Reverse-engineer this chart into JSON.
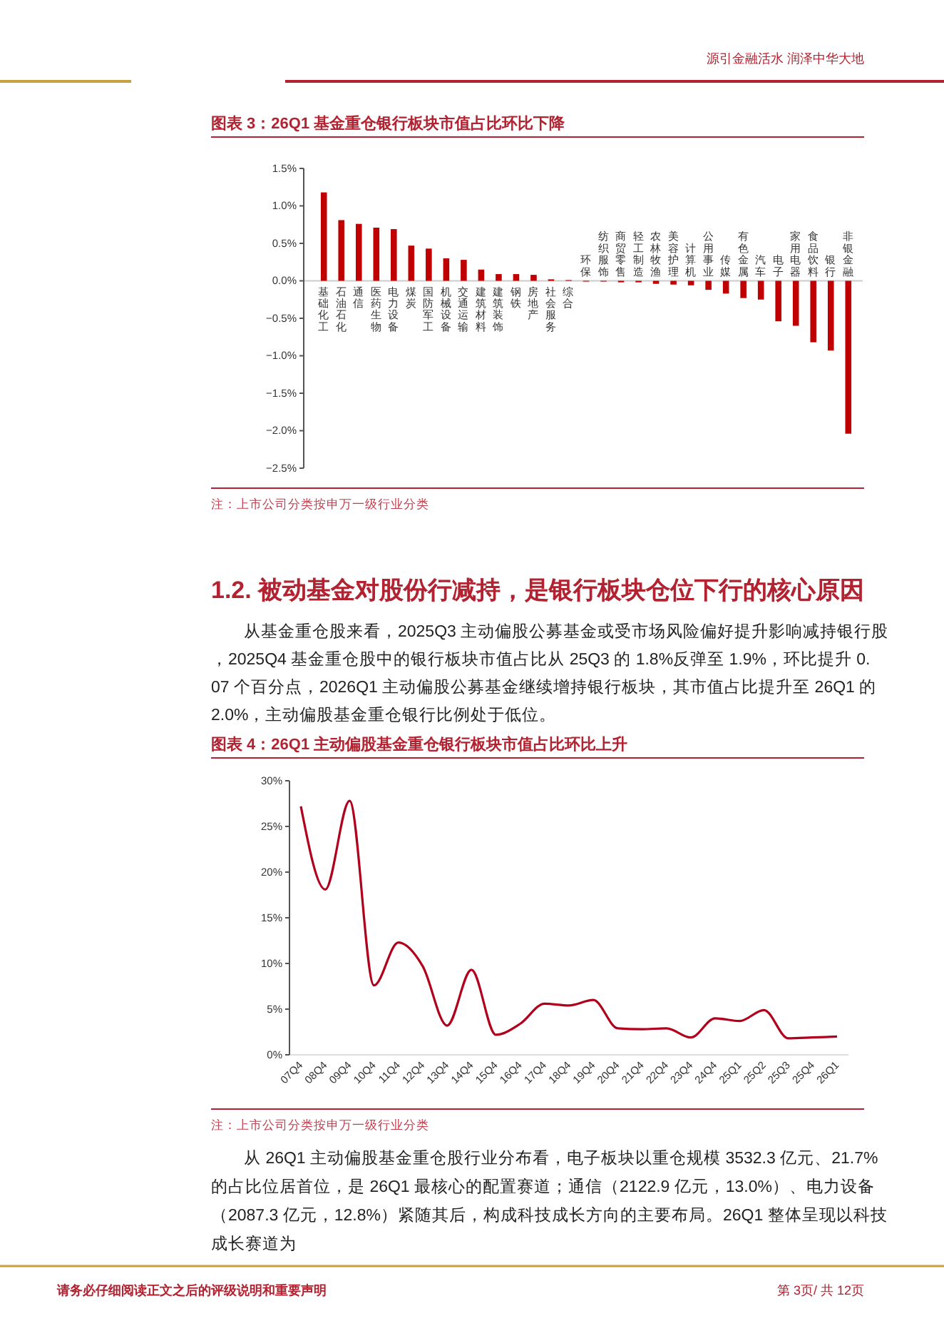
{
  "chart_data": [
    {
      "type": "bar",
      "title": "图表 3：26Q1 基金重仓银行板块市值占比环比下降",
      "color": "#c00000",
      "categories": [
        "基础化工",
        "石油石化",
        "通信",
        "医药生物",
        "电力设备",
        "煤炭",
        "国防军工",
        "机械设备",
        "交通运输",
        "建筑材料",
        "建筑装饰",
        "钢铁",
        "房地产",
        "社会服务",
        "综合",
        "环保",
        "纺织服饰",
        "商贸零售",
        "轻工制造",
        "农林牧渔",
        "美容护理",
        "计算机",
        "公用事业",
        "传媒",
        "有色金属",
        "汽车",
        "电子",
        "家用电器",
        "食品饮料",
        "银行",
        "非银金融"
      ],
      "values": [
        1.18,
        0.81,
        0.76,
        0.71,
        0.69,
        0.47,
        0.43,
        0.3,
        0.28,
        0.15,
        0.09,
        0.09,
        0.08,
        0.02,
        0.01,
        -0.01,
        -0.01,
        -0.02,
        -0.02,
        -0.04,
        -0.05,
        -0.06,
        -0.12,
        -0.17,
        -0.23,
        -0.25,
        -0.54,
        -0.6,
        -0.82,
        -0.93,
        -2.04
      ],
      "ylim": [
        -2.5,
        1.5
      ],
      "yticks": [
        {
          "value": -2.5,
          "label": "−2.5%"
        },
        {
          "value": -2,
          "label": "−2.0%"
        },
        {
          "value": -1.5,
          "label": "−1.5%"
        },
        {
          "value": -1,
          "label": "−1.0%"
        },
        {
          "value": -0.5,
          "label": "−0.5%"
        },
        {
          "value": 0,
          "label": "0.0%"
        },
        {
          "value": 0.5,
          "label": "0.5%"
        },
        {
          "value": 1,
          "label": "1.0%"
        },
        {
          "value": 1.5,
          "label": "1.5%"
        }
      ],
      "annotations": [
        "源引金融活水 润泽中华大地",
        "注：上市公司分类按申万一级行业分类",
        "1.2. 被动基金对股份行减持，是银行板块仓位下行的核心原因",
        "从基金重仓股来看，2025Q3 主动偏股公募基金或受市场风险偏好提升影响减持银行股，2025Q4 基金重仓股中的银行板块市值占比从 25Q3 的 1.8%反弹至 1.9%，环比提升 0.07 个百分点，2026Q1 主动偏股公募基金继续增持银行板块，其市值占比提升至 26Q1 的 2.0%，主动偏股基金重仓银行比例处于低位。"
      ]
    },
    {
      "type": "line",
      "title": "图表 4：26Q1 主动偏股基金重仓银行板块市值占比环比上升",
      "categories": [
        "07Q4",
        "08Q4",
        "09Q4",
        "10Q4",
        "11Q4",
        "12Q4",
        "13Q4",
        "14Q4",
        "15Q4",
        "16Q4",
        "17Q4",
        "18Q4",
        "19Q4",
        "20Q4",
        "21Q4",
        "22Q4",
        "23Q4",
        "24Q4",
        "25Q1",
        "25Q2",
        "25Q3",
        "25Q4",
        "26Q1"
      ],
      "series": [
        {
          "color": "#b0001c",
          "values": [
            27.2,
            18.1,
            27.8,
            7.6,
            12.3,
            9.7,
            3.2,
            9.3,
            2.2,
            3.4,
            5.6,
            5.4,
            6.0,
            2.9,
            2.8,
            2.9,
            1.9,
            4.0,
            3.7,
            4.9,
            1.8,
            1.9,
            2.0
          ]
        }
      ],
      "ylim": [
        0,
        30
      ],
      "yticks": [
        {
          "value": 0,
          "label": "0%"
        },
        {
          "value": 5,
          "label": "5%"
        },
        {
          "value": 10,
          "label": "10%"
        },
        {
          "value": 15,
          "label": "15%"
        },
        {
          "value": 20,
          "label": "20%"
        },
        {
          "value": 25,
          "label": "25%"
        },
        {
          "value": 30,
          "label": "30%"
        }
      ],
      "annotations": [
        "注：上市公司分类按申万一级行业分类",
        "从 26Q1 主动偏股基金重仓股行业分布看，电子板块以重仓规模 3532.3 亿元、21.7%的占比位居首位，是 26Q1 最核心的配置赛道；通信（2122.9 亿元，13.0%）、电力设备（2087.3 亿元，12.8%）紧随其后，构成科技成长方向的主要布局。26Q1 整体呈现以科技成长赛道为",
        "请务必仔细阅读正文之后的评级说明和重要声明",
        "第 3页/ 共 12页"
      ]
    }
  ]
}
